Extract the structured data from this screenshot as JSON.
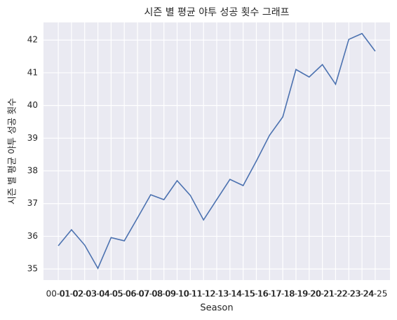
{
  "chart_data": {
    "type": "line",
    "title": "시즌 별 평균 야투 성공 횟수 그래프",
    "x_label": "Season",
    "y_label": "시즌 별 평균 야투 성공 횟수",
    "categories": [
      "00-01",
      "01-02",
      "02-03",
      "03-04",
      "04-05",
      "05-06",
      "06-07",
      "07-08",
      "08-09",
      "09-10",
      "10-11",
      "11-12",
      "12-13",
      "13-14",
      "14-15",
      "15-16",
      "16-17",
      "17-18",
      "18-19",
      "19-20",
      "20-21",
      "21-22",
      "22-23",
      "23-24",
      "24-25"
    ],
    "series": [
      {
        "name": "Season",
        "color": "#4c72b0",
        "values": [
          35.71,
          36.2,
          35.73,
          35.02,
          35.96,
          35.86,
          36.56,
          37.27,
          37.12,
          37.7,
          37.25,
          36.5,
          37.12,
          37.74,
          37.55,
          38.3,
          39.09,
          39.65,
          41.1,
          40.87,
          41.25,
          40.65,
          42.02,
          42.2,
          41.66
        ]
      }
    ],
    "ylim": [
      34.66,
      42.54
    ],
    "yticks": [
      35,
      36,
      37,
      38,
      39,
      40,
      41,
      42
    ],
    "grid": true
  }
}
